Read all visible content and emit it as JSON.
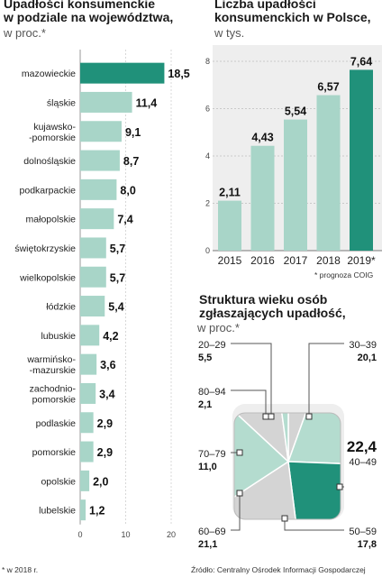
{
  "left": {
    "title_lines": [
      "Upadłości konsumenckie",
      "w podziale na województwa,"
    ],
    "subtitle": "w proc.*",
    "footnote": "* w 2018 r."
  },
  "right_top": {
    "title_lines": [
      "Liczba upadłości",
      "konsumenckich w Polsce,"
    ],
    "subtitle": "w tys.",
    "footnote": "* prognoza COIG"
  },
  "right_bottom": {
    "title_lines": [
      "Struktura wieku osób",
      "zgłaszających upadłość,"
    ],
    "subtitle": "w proc.*"
  },
  "source": "Źródło: Centralny Ośrodek Informacji Gospodarczej",
  "colors": {
    "light": "#a8d5c8",
    "highlight": "#20917a",
    "pie_gray": "#d4d4d4",
    "pie_green": "#b4dccf",
    "panel_bg": "#eeeeee"
  },
  "chart_data": [
    {
      "type": "bar",
      "orientation": "horizontal",
      "categories": [
        "mazowieckie",
        "śląskie",
        "kujawsko-\n-pomorskie",
        "dolnośląskie",
        "podkarpackie",
        "małopolskie",
        "świętokrzyskie",
        "wielkopolskie",
        "łódzkie",
        "lubuskie",
        "warmińsko-\n-mazurskie",
        "zachodnio-\npomorskie",
        "podlaskie",
        "pomorskie",
        "opolskie",
        "lubelskie"
      ],
      "values": [
        18.5,
        11.4,
        9.1,
        8.7,
        8.0,
        7.4,
        5.7,
        5.7,
        5.4,
        4.2,
        3.6,
        3.4,
        2.9,
        2.9,
        2.0,
        1.2
      ],
      "value_labels": [
        "18,5",
        "11,4",
        "9,1",
        "8,7",
        "8,0",
        "7,4",
        "5,7",
        "5,7",
        "5,4",
        "4,2",
        "3,6",
        "3,4",
        "2,9",
        "2,9",
        "2,0",
        "1,2"
      ],
      "highlight_index": 0,
      "xlim": [
        0,
        20
      ],
      "xticks": [
        "0",
        "10",
        "20"
      ]
    },
    {
      "type": "bar",
      "categories": [
        "2015",
        "2016",
        "2017",
        "2018",
        "2019*"
      ],
      "values": [
        2.11,
        4.43,
        5.54,
        6.57,
        7.64
      ],
      "value_labels": [
        "2,11",
        "4,43",
        "5,54",
        "6,57",
        "7,64"
      ],
      "highlight_index": 4,
      "ylim": [
        0,
        8
      ],
      "yticks": [
        "0",
        "2",
        "4",
        "6",
        "8"
      ]
    },
    {
      "type": "pie",
      "categories": [
        "20–29",
        "30–39",
        "40–49",
        "50–59",
        "60–69",
        "70–79",
        "80–94"
      ],
      "values": [
        5.5,
        20.1,
        22.4,
        17.8,
        21.1,
        11.0,
        2.1
      ],
      "value_labels": [
        "5,5",
        "20,1",
        "22,4",
        "17,8",
        "21,1",
        "11,0",
        "2,1"
      ],
      "highlight_index": 2
    }
  ]
}
